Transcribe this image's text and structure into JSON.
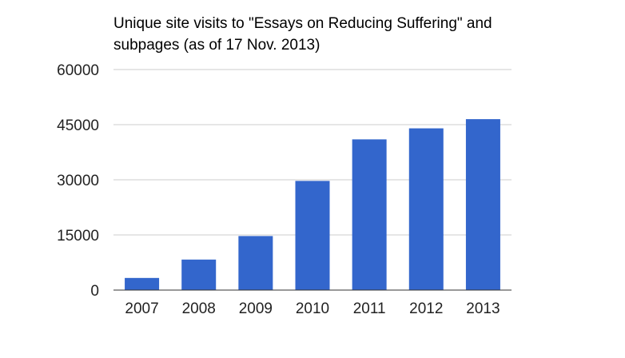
{
  "chart_data": {
    "type": "bar",
    "title": "Unique site visits to \"Essays on Reducing Suffering\" and subpages (as of 17 Nov. 2013)",
    "xlabel": "",
    "ylabel": "",
    "categories": [
      "2007",
      "2008",
      "2009",
      "2010",
      "2011",
      "2012",
      "2013"
    ],
    "series": [
      {
        "values": [
          3300,
          8300,
          14700,
          29700,
          41000,
          44000,
          46500
        ]
      }
    ],
    "ylim": [
      0,
      60000
    ],
    "yticks": [
      "0",
      "15000",
      "30000",
      "45000",
      "60000"
    ],
    "grid": true,
    "legend": "none",
    "colors": {
      "bar": "#3366cc",
      "grid": "#cccccc",
      "axis": "#333333"
    }
  }
}
